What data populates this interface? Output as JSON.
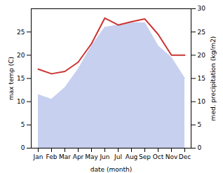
{
  "chart_data": {
    "type": "line",
    "xlabel": "date (month)",
    "ylabel": "max temp (C)",
    "y2label": "med. precipitation (kg/m2)",
    "categories": [
      "Jan",
      "Feb",
      "Mar",
      "Apr",
      "May",
      "Jun",
      "Jul",
      "Aug",
      "Sep",
      "Oct",
      "Nov",
      "Dec"
    ],
    "series": [
      {
        "type": "area",
        "color": "#c8d0f0",
        "values": [
          11.5,
          10.5,
          13.0,
          17.0,
          22.0,
          26.0,
          26.5,
          27.0,
          27.0,
          22.0,
          19.5,
          15.0
        ]
      },
      {
        "type": "line",
        "color": "#cc3333",
        "axis": "y2",
        "values": [
          17.0,
          16.0,
          16.5,
          18.5,
          22.5,
          28.0,
          26.5,
          27.2,
          27.8,
          24.5,
          20.0,
          20.0
        ]
      }
    ],
    "ylim": [
      0,
      30
    ],
    "yticks": [
      0,
      5,
      10,
      15,
      20,
      25
    ],
    "y2lim": [
      0,
      30
    ],
    "y2ticks": [
      0,
      5,
      10,
      15,
      20,
      25,
      30
    ],
    "grid": false
  }
}
